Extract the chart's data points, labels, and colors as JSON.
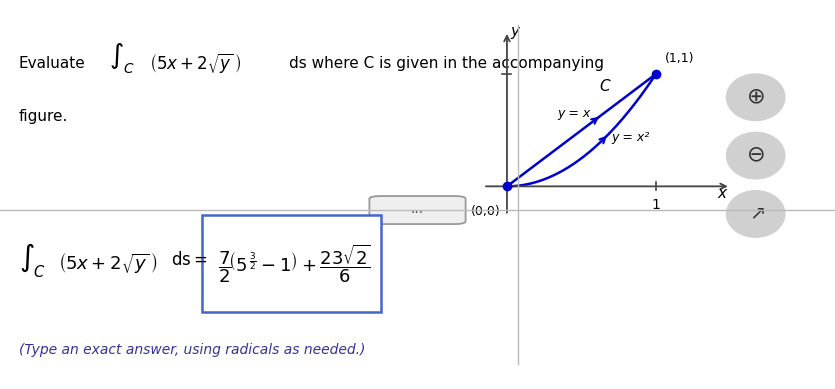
{
  "bg_color": "#ffffff",
  "top_bar_color": "#008B8B",
  "curve_color": "#0000cc",
  "axis_color": "#444444",
  "point_color": "#0000cc",
  "hint_color": "#333399",
  "divider_color": "#bbbbbb",
  "box_color": "#4466cc",
  "plot_xlim": [
    -0.18,
    1.5
  ],
  "plot_ylim": [
    -0.28,
    1.38
  ],
  "label_00": "(0,0)",
  "label_11": "(1,1)",
  "label_yx": "y = x",
  "label_yx2": "y = x²",
  "label_C": "C",
  "label_x": "x",
  "label_y": "y",
  "hint_text": "(Type an exact answer, using radicals as needed.)"
}
